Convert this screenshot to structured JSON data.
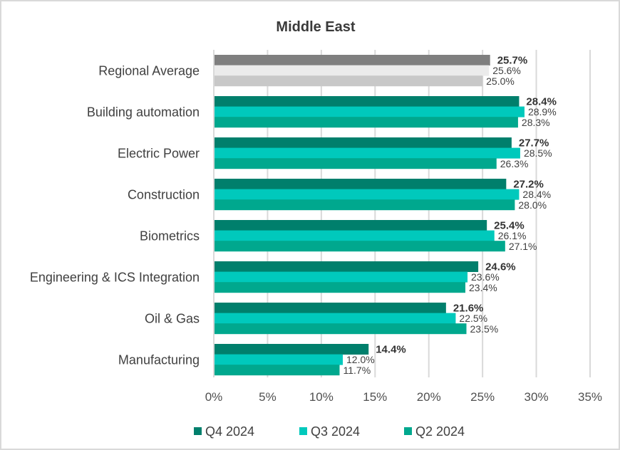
{
  "chart_data": {
    "type": "bar",
    "orientation": "horizontal",
    "title": "Middle East",
    "xlabel": "",
    "ylabel": "",
    "xlim": [
      0,
      35
    ],
    "x_ticks": [
      "0%",
      "5%",
      "10%",
      "15%",
      "20%",
      "25%",
      "30%",
      "35%"
    ],
    "x_tick_values": [
      0,
      5,
      10,
      15,
      20,
      25,
      30,
      35
    ],
    "grid": true,
    "legend_position": "bottom",
    "categories": [
      "Regional Average",
      "Building automation",
      "Electric Power",
      "Construction",
      "Biometrics",
      "Engineering & ICS Integration",
      "Oil & Gas",
      "Manufacturing"
    ],
    "series": [
      {
        "name": "Q4 2024",
        "color": "#007f6c",
        "values": [
          25.7,
          28.4,
          27.7,
          27.2,
          25.4,
          24.6,
          21.6,
          14.4
        ],
        "labels": [
          "25.7%",
          "28.4%",
          "27.7%",
          "27.2%",
          "25.4%",
          "24.6%",
          "21.6%",
          "14.4%"
        ]
      },
      {
        "name": "Q3 2024",
        "color": "#00c9bc",
        "values": [
          25.6,
          28.9,
          28.5,
          28.4,
          26.1,
          23.6,
          22.5,
          12.0
        ],
        "labels": [
          "25.6%",
          "28.9%",
          "28.5%",
          "28.4%",
          "26.1%",
          "23.6%",
          "22.5%",
          "12.0%"
        ]
      },
      {
        "name": "Q2 2024",
        "color": "#00a88e",
        "values": [
          25.0,
          28.3,
          26.3,
          28.0,
          27.1,
          23.4,
          23.5,
          11.7
        ],
        "labels": [
          "25.0%",
          "28.3%",
          "26.3%",
          "28.0%",
          "27.1%",
          "23.4%",
          "23.5%",
          "11.7%"
        ]
      }
    ],
    "regional_average_colors": [
      "#7f7f7f",
      "#ebebeb",
      "#c8c8c8"
    ]
  }
}
